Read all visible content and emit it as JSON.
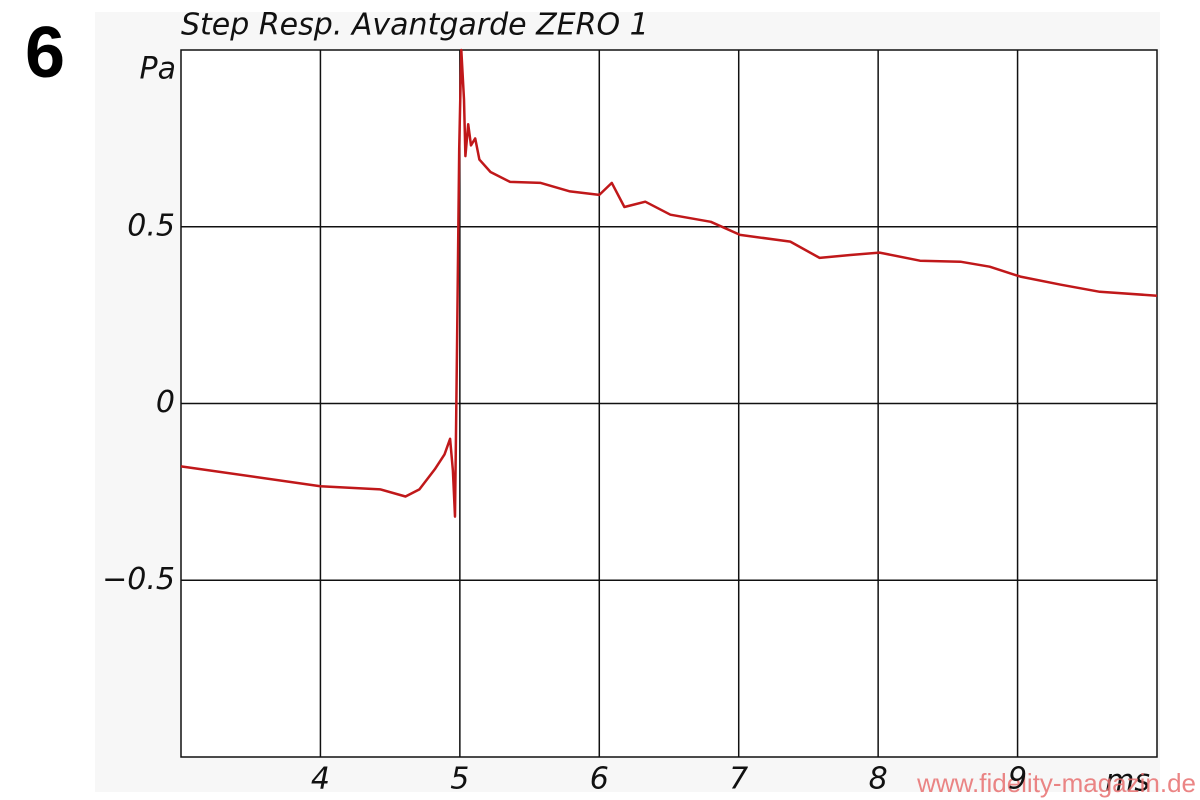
{
  "chart_data": {
    "type": "line",
    "figure_number": "6",
    "title": "Step Resp. Avantgarde ZERO 1",
    "y_unit": "Pa",
    "x_unit": "ms",
    "watermark": "www.fidelity-magazin.de",
    "xlim": [
      3,
      10
    ],
    "ylim": [
      -1,
      1
    ],
    "xticks": [
      4,
      5,
      6,
      7,
      8,
      9
    ],
    "yticks": [
      {
        "value": -0.5,
        "label": "−0.5"
      },
      0,
      0.5
    ],
    "grid": true,
    "series": [
      {
        "color": "#c0181a",
        "x": [
          3.0,
          4.0,
          4.43,
          4.61,
          4.71,
          4.82,
          4.89,
          4.93,
          4.95,
          4.965,
          4.98,
          4.995,
          5.01,
          5.03,
          5.04,
          5.06,
          5.08,
          5.11,
          5.14,
          5.22,
          5.36,
          5.58,
          5.79,
          6.0,
          6.09,
          6.18,
          6.33,
          6.51,
          6.8,
          7.01,
          7.37,
          7.58,
          7.8,
          8.01,
          8.3,
          8.59,
          8.8,
          9.02,
          9.31,
          9.59,
          10.0
        ],
        "values": [
          -0.178,
          -0.234,
          -0.243,
          -0.263,
          -0.243,
          -0.186,
          -0.144,
          -0.1,
          -0.19,
          -0.32,
          0.18,
          0.72,
          1.0,
          0.86,
          0.7,
          0.79,
          0.73,
          0.75,
          0.69,
          0.655,
          0.627,
          0.624,
          0.6,
          0.59,
          0.624,
          0.556,
          0.571,
          0.534,
          0.514,
          0.477,
          0.458,
          0.412,
          0.42,
          0.427,
          0.404,
          0.401,
          0.387,
          0.359,
          0.336,
          0.316,
          0.305
        ]
      }
    ]
  }
}
